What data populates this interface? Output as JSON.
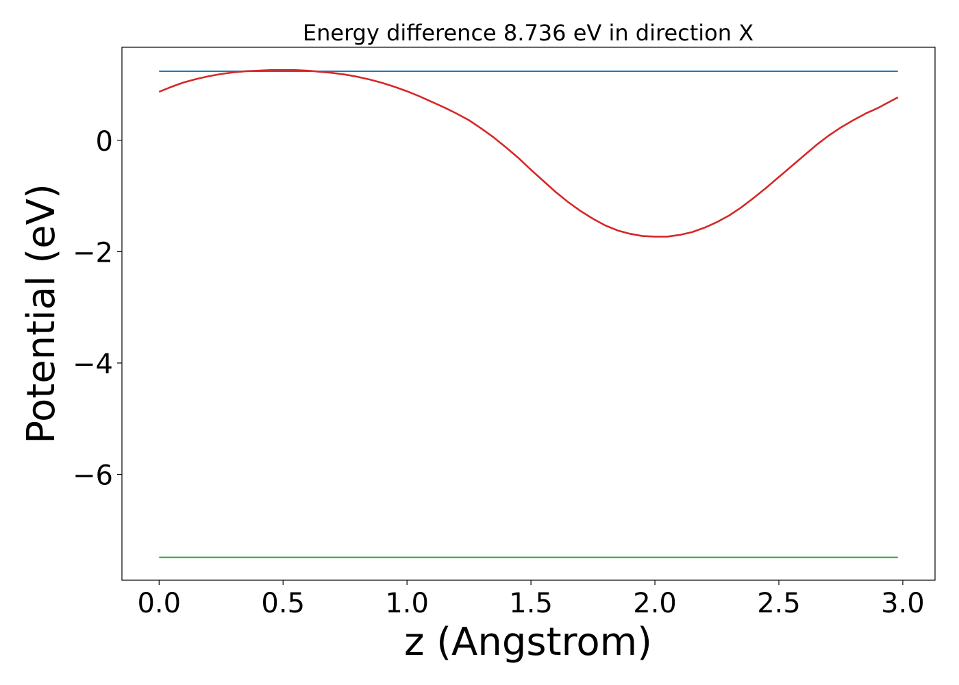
{
  "chart_data": {
    "type": "line",
    "title": "Energy difference 8.736 eV in direction X",
    "xlabel": "z (Angstrom)",
    "ylabel": "Potential (eV)",
    "xlim": [
      -0.15,
      3.13
    ],
    "ylim": [
      -7.9,
      1.67
    ],
    "xticks": [
      0.0,
      0.5,
      1.0,
      1.5,
      2.0,
      2.5,
      3.0
    ],
    "xtick_labels": [
      "0.0",
      "0.5",
      "1.0",
      "1.5",
      "2.0",
      "2.5",
      "3.0"
    ],
    "yticks": [
      0,
      -2,
      -4,
      -6
    ],
    "ytick_labels": [
      "0",
      "−2",
      "−4",
      "−6"
    ],
    "grid": false,
    "legend": false,
    "series": [
      {
        "color": "#1f77b4",
        "x": [
          0.0,
          2.98
        ],
        "y": [
          1.24,
          1.24
        ]
      },
      {
        "color": "#2ca02c",
        "x": [
          0.0,
          2.98
        ],
        "y": [
          -7.49,
          -7.49
        ]
      },
      {
        "color": "#d62728",
        "x": [
          0.0,
          0.05,
          0.1,
          0.15,
          0.2,
          0.25,
          0.3,
          0.35,
          0.4,
          0.45,
          0.5,
          0.55,
          0.6,
          0.65,
          0.7,
          0.75,
          0.8,
          0.85,
          0.9,
          0.95,
          1.0,
          1.05,
          1.1,
          1.15,
          1.2,
          1.25,
          1.3,
          1.35,
          1.4,
          1.45,
          1.5,
          1.55,
          1.6,
          1.65,
          1.7,
          1.75,
          1.8,
          1.85,
          1.9,
          1.95,
          2.0,
          2.05,
          2.1,
          2.15,
          2.2,
          2.25,
          2.3,
          2.35,
          2.4,
          2.45,
          2.5,
          2.55,
          2.6,
          2.65,
          2.7,
          2.75,
          2.8,
          2.85,
          2.9,
          2.95,
          2.98
        ],
        "y": [
          0.87,
          0.96,
          1.04,
          1.1,
          1.15,
          1.19,
          1.22,
          1.24,
          1.25,
          1.26,
          1.26,
          1.26,
          1.25,
          1.23,
          1.21,
          1.18,
          1.14,
          1.09,
          1.03,
          0.96,
          0.88,
          0.79,
          0.69,
          0.59,
          0.48,
          0.36,
          0.21,
          0.05,
          -0.13,
          -0.32,
          -0.53,
          -0.73,
          -0.93,
          -1.11,
          -1.27,
          -1.41,
          -1.53,
          -1.62,
          -1.68,
          -1.72,
          -1.73,
          -1.73,
          -1.7,
          -1.65,
          -1.57,
          -1.47,
          -1.35,
          -1.2,
          -1.03,
          -0.85,
          -0.66,
          -0.47,
          -0.28,
          -0.09,
          0.08,
          0.23,
          0.36,
          0.48,
          0.58,
          0.7,
          0.77
        ]
      }
    ]
  }
}
